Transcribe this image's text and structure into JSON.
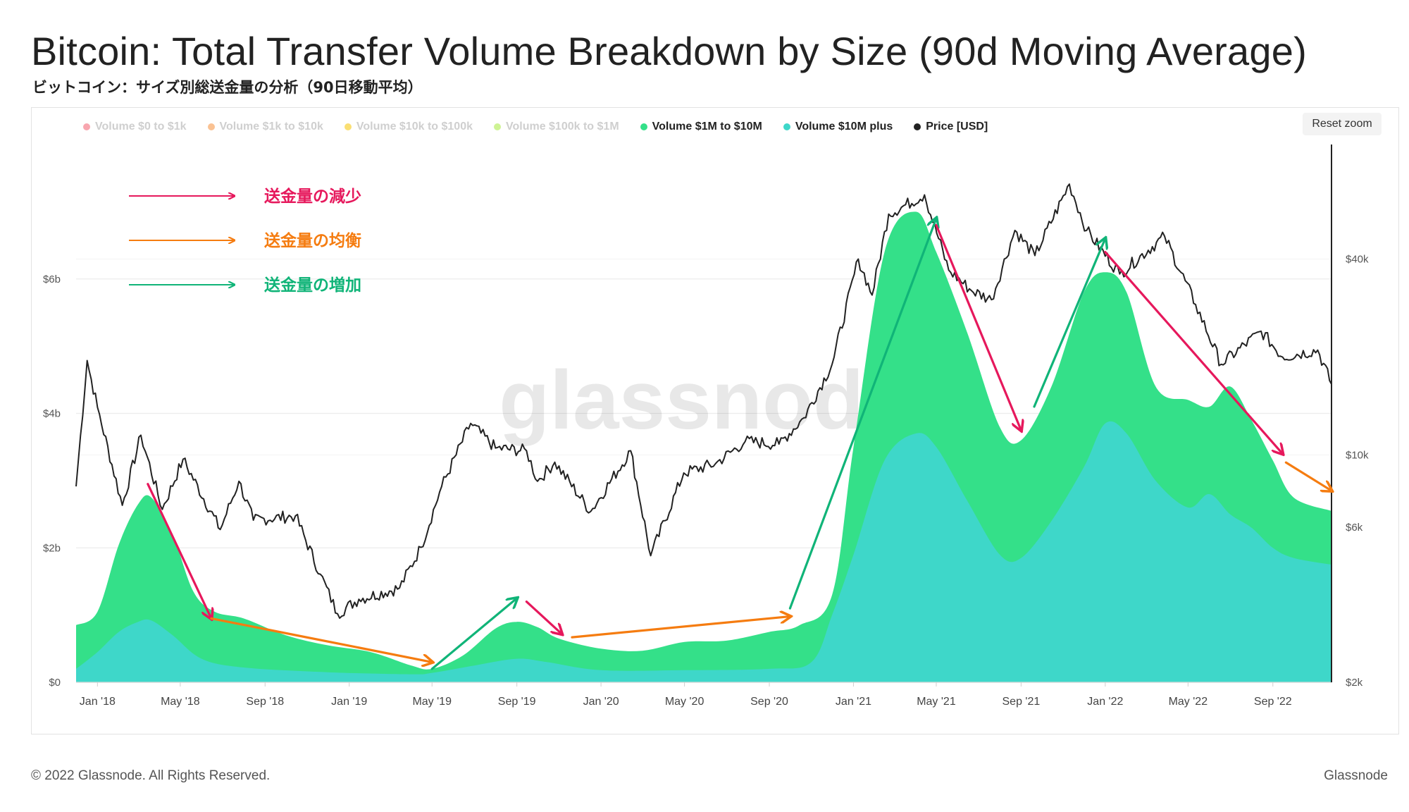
{
  "header": {
    "title": "Bitcoin: Total Transfer Volume Breakdown by Size (90d Moving Average)",
    "subtitle": "ビットコイン：サイズ別総送金量の分析（90日移動平均）"
  },
  "controls": {
    "reset_zoom_label": "Reset zoom"
  },
  "watermark": "glassnode",
  "footer": {
    "copyright": "© 2022 Glassnode. All Rights Reserved.",
    "brand": "Glassnode"
  },
  "annotations": {
    "legend": [
      {
        "label": "送金量の減少",
        "color": "#e6185c"
      },
      {
        "label": "送金量の均衡",
        "color": "#f57c10"
      },
      {
        "label": "送金量の増加",
        "color": "#10b478"
      }
    ]
  },
  "chart_data": {
    "type": "area",
    "x_axis": {
      "tick_labels": [
        "Jan '18",
        "May '18",
        "Sep '18",
        "Jan '19",
        "May '19",
        "Sep '19",
        "Jan '20",
        "May '20",
        "Sep '20",
        "Jan '21",
        "May '21",
        "Sep '21",
        "Jan '22",
        "May '22",
        "Sep '22"
      ],
      "range": [
        "2017-12-01",
        "2022-11-25"
      ]
    },
    "y_axis_left": {
      "tick_labels": [
        "$0",
        "$2b",
        "$4b",
        "$6b"
      ],
      "range": [
        0,
        8.0
      ],
      "unit": "billion USD"
    },
    "y_axis_right": {
      "tick_labels": [
        "$2k",
        "$6k",
        "$10k",
        "$40k"
      ],
      "scale": "log",
      "range": [
        2000,
        90000
      ]
    },
    "grid": true,
    "legend_position": "top",
    "series": [
      {
        "name": "Volume $0 to $1k",
        "color": "#f25c6e",
        "visible": false
      },
      {
        "name": "Volume $1k to $10k",
        "color": "#f5903a",
        "visible": false
      },
      {
        "name": "Volume $10k to $100k",
        "color": "#f5c400",
        "visible": false
      },
      {
        "name": "Volume $100k to $1M",
        "color": "#a6ea3c",
        "visible": false
      },
      {
        "name": "Volume $1M to $10M",
        "color": "#34e089",
        "visible": true,
        "stacked_total": true,
        "points": [
          [
            "2017-12-01",
            0.85
          ],
          [
            "2018-01-01",
            1.05
          ],
          [
            "2018-02-01",
            2.05
          ],
          [
            "2018-03-01",
            2.65
          ],
          [
            "2018-03-20",
            2.75
          ],
          [
            "2018-04-20",
            2.2
          ],
          [
            "2018-05-20",
            1.35
          ],
          [
            "2018-06-20",
            1.05
          ],
          [
            "2018-08-01",
            0.95
          ],
          [
            "2018-10-01",
            0.7
          ],
          [
            "2018-12-01",
            0.55
          ],
          [
            "2019-02-01",
            0.45
          ],
          [
            "2019-04-01",
            0.25
          ],
          [
            "2019-05-01",
            0.2
          ],
          [
            "2019-06-15",
            0.4
          ],
          [
            "2019-08-01",
            0.8
          ],
          [
            "2019-09-01",
            0.9
          ],
          [
            "2019-10-01",
            0.82
          ],
          [
            "2019-11-01",
            0.65
          ],
          [
            "2020-01-01",
            0.5
          ],
          [
            "2020-03-01",
            0.47
          ],
          [
            "2020-05-01",
            0.6
          ],
          [
            "2020-07-01",
            0.62
          ],
          [
            "2020-09-01",
            0.75
          ],
          [
            "2020-10-15",
            0.85
          ],
          [
            "2020-12-01",
            1.3
          ],
          [
            "2021-01-01",
            3.5
          ],
          [
            "2021-02-15",
            6.4
          ],
          [
            "2021-04-01",
            7.0
          ],
          [
            "2021-05-01",
            6.4
          ],
          [
            "2021-06-15",
            5.2
          ],
          [
            "2021-08-01",
            3.8
          ],
          [
            "2021-09-01",
            3.6
          ],
          [
            "2021-10-15",
            4.4
          ],
          [
            "2021-12-01",
            5.8
          ],
          [
            "2022-01-01",
            6.1
          ],
          [
            "2022-02-01",
            5.8
          ],
          [
            "2022-03-15",
            4.4
          ],
          [
            "2022-05-01",
            4.2
          ],
          [
            "2022-06-01",
            4.1
          ],
          [
            "2022-07-01",
            4.4
          ],
          [
            "2022-08-01",
            3.9
          ],
          [
            "2022-09-01",
            3.3
          ],
          [
            "2022-10-01",
            2.75
          ],
          [
            "2022-11-25",
            2.55
          ]
        ]
      },
      {
        "name": "Volume $10M plus",
        "color": "#3ed7c9",
        "visible": true,
        "points": [
          [
            "2017-12-01",
            0.2
          ],
          [
            "2018-01-01",
            0.45
          ],
          [
            "2018-02-01",
            0.75
          ],
          [
            "2018-03-01",
            0.9
          ],
          [
            "2018-03-20",
            0.92
          ],
          [
            "2018-04-20",
            0.7
          ],
          [
            "2018-06-01",
            0.35
          ],
          [
            "2018-08-01",
            0.22
          ],
          [
            "2018-12-01",
            0.15
          ],
          [
            "2019-04-01",
            0.12
          ],
          [
            "2019-05-01",
            0.14
          ],
          [
            "2019-07-01",
            0.25
          ],
          [
            "2019-09-01",
            0.35
          ],
          [
            "2019-10-15",
            0.3
          ],
          [
            "2020-01-01",
            0.18
          ],
          [
            "2020-05-01",
            0.18
          ],
          [
            "2020-09-01",
            0.2
          ],
          [
            "2020-11-01",
            0.3
          ],
          [
            "2020-12-01",
            1.0
          ],
          [
            "2021-01-01",
            1.9
          ],
          [
            "2021-02-15",
            3.3
          ],
          [
            "2021-04-01",
            3.7
          ],
          [
            "2021-05-01",
            3.5
          ],
          [
            "2021-06-15",
            2.7
          ],
          [
            "2021-08-01",
            1.9
          ],
          [
            "2021-09-01",
            1.85
          ],
          [
            "2021-10-15",
            2.4
          ],
          [
            "2021-12-01",
            3.2
          ],
          [
            "2022-01-01",
            3.85
          ],
          [
            "2022-02-01",
            3.7
          ],
          [
            "2022-03-15",
            3.0
          ],
          [
            "2022-05-01",
            2.6
          ],
          [
            "2022-06-01",
            2.8
          ],
          [
            "2022-07-01",
            2.5
          ],
          [
            "2022-08-01",
            2.3
          ],
          [
            "2022-09-01",
            2.0
          ],
          [
            "2022-10-01",
            1.85
          ],
          [
            "2022-11-25",
            1.75
          ]
        ]
      },
      {
        "name": "Price [USD]",
        "color": "#222222",
        "visible": true,
        "axis": "right",
        "points": [
          [
            "2017-12-01",
            8000
          ],
          [
            "2017-12-17",
            19500
          ],
          [
            "2018-01-01",
            14000
          ],
          [
            "2018-02-06",
            7000
          ],
          [
            "2018-03-05",
            11500
          ],
          [
            "2018-04-05",
            6800
          ],
          [
            "2018-05-05",
            9700
          ],
          [
            "2018-06-28",
            5900
          ],
          [
            "2018-07-25",
            8300
          ],
          [
            "2018-08-15",
            6300
          ],
          [
            "2018-10-15",
            6500
          ],
          [
            "2018-11-20",
            4300
          ],
          [
            "2018-12-15",
            3250
          ],
          [
            "2019-01-15",
            3600
          ],
          [
            "2019-03-15",
            3900
          ],
          [
            "2019-04-15",
            5200
          ],
          [
            "2019-05-15",
            8000
          ],
          [
            "2019-06-26",
            12500
          ],
          [
            "2019-08-01",
            10500
          ],
          [
            "2019-09-15",
            10300
          ],
          [
            "2019-10-01",
            8300
          ],
          [
            "2019-10-26",
            9500
          ],
          [
            "2019-12-17",
            6700
          ],
          [
            "2020-02-13",
            10300
          ],
          [
            "2020-03-13",
            4900
          ],
          [
            "2020-04-30",
            8800
          ],
          [
            "2020-06-15",
            9400
          ],
          [
            "2020-07-28",
            11000
          ],
          [
            "2020-09-15",
            10800
          ],
          [
            "2020-10-21",
            13000
          ],
          [
            "2020-12-01",
            19000
          ],
          [
            "2021-01-08",
            40000
          ],
          [
            "2021-01-28",
            31000
          ],
          [
            "2021-02-21",
            55000
          ],
          [
            "2021-04-14",
            63000
          ],
          [
            "2021-05-19",
            37000
          ],
          [
            "2021-06-21",
            32000
          ],
          [
            "2021-07-20",
            30000
          ],
          [
            "2021-08-23",
            49000
          ],
          [
            "2021-09-21",
            41000
          ],
          [
            "2021-11-10",
            68000
          ],
          [
            "2021-12-05",
            49000
          ],
          [
            "2022-01-22",
            36000
          ],
          [
            "2022-03-28",
            47000
          ],
          [
            "2022-05-12",
            29000
          ],
          [
            "2022-06-18",
            19000
          ],
          [
            "2022-08-15",
            24000
          ],
          [
            "2022-09-15",
            20000
          ],
          [
            "2022-11-05",
            21000
          ],
          [
            "2022-11-25",
            16500
          ]
        ]
      }
    ],
    "annotation_arrows": [
      {
        "kind": "increase",
        "from": [
          "2019-05-01",
          0.2
        ],
        "to": [
          "2019-09-01",
          1.25
        ]
      },
      {
        "kind": "increase",
        "from": [
          "2020-10-01",
          1.1
        ],
        "to": [
          "2021-05-01",
          6.9
        ]
      },
      {
        "kind": "increase",
        "from": [
          "2021-09-20",
          4.1
        ],
        "to": [
          "2022-01-01",
          6.6
        ]
      },
      {
        "kind": "decrease",
        "from": [
          "2018-03-15",
          2.95
        ],
        "to": [
          "2018-06-15",
          0.95
        ]
      },
      {
        "kind": "decrease",
        "from": [
          "2019-09-15",
          1.2
        ],
        "to": [
          "2019-11-05",
          0.72
        ]
      },
      {
        "kind": "decrease",
        "from": [
          "2021-05-01",
          6.8
        ],
        "to": [
          "2021-09-01",
          3.75
        ]
      },
      {
        "kind": "decrease",
        "from": [
          "2022-01-01",
          6.4
        ],
        "to": [
          "2022-09-15",
          3.4
        ]
      },
      {
        "kind": "balance",
        "from": [
          "2018-06-15",
          0.95
        ],
        "to": [
          "2019-05-01",
          0.3
        ]
      },
      {
        "kind": "balance",
        "from": [
          "2019-11-20",
          0.67
        ],
        "to": [
          "2020-10-01",
          0.98
        ]
      },
      {
        "kind": "balance",
        "from": [
          "2022-09-20",
          3.27
        ],
        "to": [
          "2022-11-25",
          2.85
        ]
      }
    ]
  }
}
